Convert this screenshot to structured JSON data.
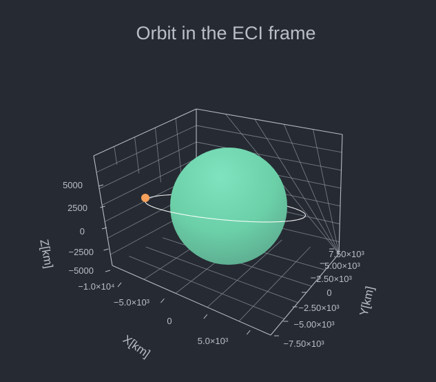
{
  "chart_data": {
    "type": "scatter3d",
    "title": "Orbit in the ECI frame",
    "xlabel": "X[km]",
    "ylabel": "Y[km]",
    "zlabel": "Z[km]",
    "xticks": [
      "−1.0×10⁴",
      "−5.0×10³",
      "0",
      "5.0×10³"
    ],
    "yticks": [
      "−7.50×10³",
      "−5.00×10³",
      "−2.50×10³",
      "0",
      "2.50×10³",
      "5.00×10³",
      "7.50×10³"
    ],
    "zticks": [
      "−5000",
      "−2500",
      "0",
      "2500",
      "5000"
    ],
    "xlim": [
      -11000,
      8000
    ],
    "ylim": [
      -8000,
      8000
    ],
    "zlim": [
      -6000,
      6500
    ],
    "grid": true,
    "earth": {
      "radius": 6371,
      "color": "#6fd6ac"
    },
    "orbit": {
      "radius": 10500,
      "color": "#ffffff"
    },
    "satellite": {
      "x": -9500,
      "y": 4300,
      "z": 700,
      "color": "#f6a05b"
    }
  }
}
